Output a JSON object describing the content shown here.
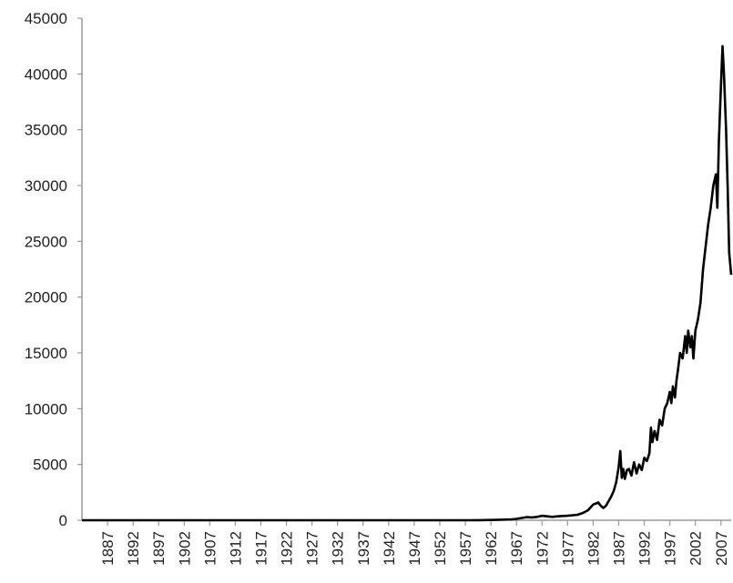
{
  "chart_data": {
    "type": "line",
    "title": "",
    "xlabel": "",
    "ylabel": "",
    "ylim": [
      0,
      45000
    ],
    "xlim": [
      1882,
      2009
    ],
    "y_ticks": [
      0,
      5000,
      10000,
      15000,
      20000,
      25000,
      30000,
      35000,
      40000,
      45000
    ],
    "x_ticks": [
      1887,
      1892,
      1897,
      1902,
      1907,
      1912,
      1917,
      1922,
      1927,
      1932,
      1937,
      1942,
      1947,
      1952,
      1957,
      1962,
      1967,
      1972,
      1977,
      1982,
      1987,
      1992,
      1997,
      2002,
      2007
    ],
    "grid": false,
    "series": [
      {
        "color": "#000000",
        "x": [
          1882,
          1957,
          1960,
          1963,
          1966,
          1967,
          1968,
          1969,
          1970,
          1971,
          1972,
          1973,
          1974,
          1975,
          1976,
          1977,
          1978,
          1979,
          1980,
          1981,
          1982,
          1983,
          1983.5,
          1984,
          1984.5,
          1985,
          1985.5,
          1986,
          1986.5,
          1987,
          1987.3,
          1987.6,
          1987.9,
          1988.2,
          1988.6,
          1989,
          1989.5,
          1990,
          1990.5,
          1991,
          1991.5,
          1992,
          1992.5,
          1993,
          1993.3,
          1993.6,
          1994,
          1994.5,
          1995,
          1995.5,
          1996,
          1996.5,
          1997,
          1997.3,
          1997.6,
          1998,
          1998.3,
          1998.6,
          1999,
          1999.5,
          2000,
          2000.3,
          2000.6,
          2001,
          2001.3,
          2001.6,
          2002,
          2002.5,
          2003,
          2003.5,
          2004,
          2004.5,
          2005,
          2005.5,
          2006,
          2006.3,
          2006.6,
          2007,
          2007.3,
          2007.6,
          2008,
          2008.3,
          2008.6,
          2009
        ],
        "values": [
          0,
          0,
          10,
          30,
          80,
          120,
          200,
          280,
          250,
          300,
          400,
          350,
          300,
          350,
          380,
          400,
          450,
          500,
          650,
          900,
          1400,
          1600,
          1300,
          1100,
          1300,
          1700,
          2100,
          2600,
          3400,
          4800,
          6200,
          3800,
          4600,
          3700,
          4500,
          4600,
          4000,
          5200,
          4200,
          5000,
          4500,
          5600,
          5300,
          6000,
          8300,
          7000,
          8000,
          7200,
          9000,
          8500,
          10000,
          10500,
          11500,
          10500,
          12000,
          11000,
          12500,
          13500,
          15000,
          14500,
          16500,
          15000,
          17000,
          15500,
          16500,
          14500,
          17000,
          18000,
          19500,
          22500,
          24500,
          26500,
          28000,
          30000,
          31000,
          28000,
          34000,
          39000,
          42500,
          40000,
          35000,
          30000,
          24000,
          22000
        ]
      }
    ]
  }
}
